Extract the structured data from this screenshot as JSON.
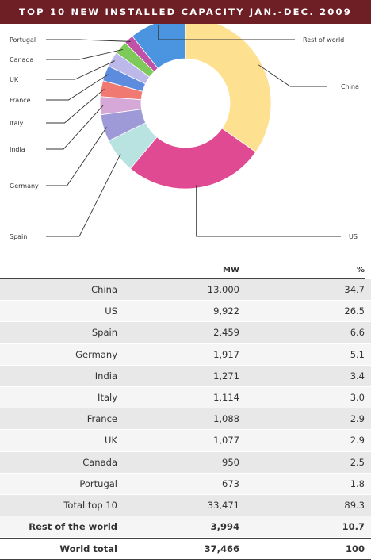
{
  "title": "TOP 10 NEW INSTALLED CAPACITY JAN.-DEC. 2009",
  "chart_data": {
    "type": "pie",
    "slices": [
      {
        "name": "China",
        "value": 34.7,
        "color": "#fde090"
      },
      {
        "name": "US",
        "value": 26.5,
        "color": "#e04a92"
      },
      {
        "name": "Spain",
        "value": 6.6,
        "color": "#b8e3e0"
      },
      {
        "name": "Germany",
        "value": 5.1,
        "color": "#9e9ad8"
      },
      {
        "name": "India",
        "value": 3.4,
        "color": "#d6a8d8"
      },
      {
        "name": "Italy",
        "value": 3.0,
        "color": "#f07a72"
      },
      {
        "name": "France",
        "value": 2.9,
        "color": "#5d8bde"
      },
      {
        "name": "UK",
        "value": 2.9,
        "color": "#bcb8ea"
      },
      {
        "name": "Canada",
        "value": 2.5,
        "color": "#7dc95a"
      },
      {
        "name": "Portugal",
        "value": 1.8,
        "color": "#c050a8"
      },
      {
        "name": "Rest of world",
        "value": 10.7,
        "color": "#4a94e0"
      }
    ]
  },
  "table": {
    "col_mw": "MW",
    "col_pct": "%",
    "rows": [
      {
        "name": "China",
        "mw": "13.000",
        "pct": "34.7"
      },
      {
        "name": "US",
        "mw": "9,922",
        "pct": "26.5"
      },
      {
        "name": "Spain",
        "mw": "2,459",
        "pct": "6.6"
      },
      {
        "name": "Germany",
        "mw": "1,917",
        "pct": "5.1"
      },
      {
        "name": "India",
        "mw": "1,271",
        "pct": "3.4"
      },
      {
        "name": "Italy",
        "mw": "1,114",
        "pct": "3.0"
      },
      {
        "name": "France",
        "mw": "1,088",
        "pct": "2.9"
      },
      {
        "name": "UK",
        "mw": "1,077",
        "pct": "2.9"
      },
      {
        "name": "Canada",
        "mw": "950",
        "pct": "2.5"
      },
      {
        "name": "Portugal",
        "mw": "673",
        "pct": "1.8"
      },
      {
        "name": "Total top 10",
        "mw": "33,471",
        "pct": "89.3"
      },
      {
        "name": "Rest of the world",
        "mw": "3,994",
        "pct": "10.7"
      }
    ],
    "total": {
      "name": "World total",
      "mw": "37,466",
      "pct": "100"
    }
  }
}
